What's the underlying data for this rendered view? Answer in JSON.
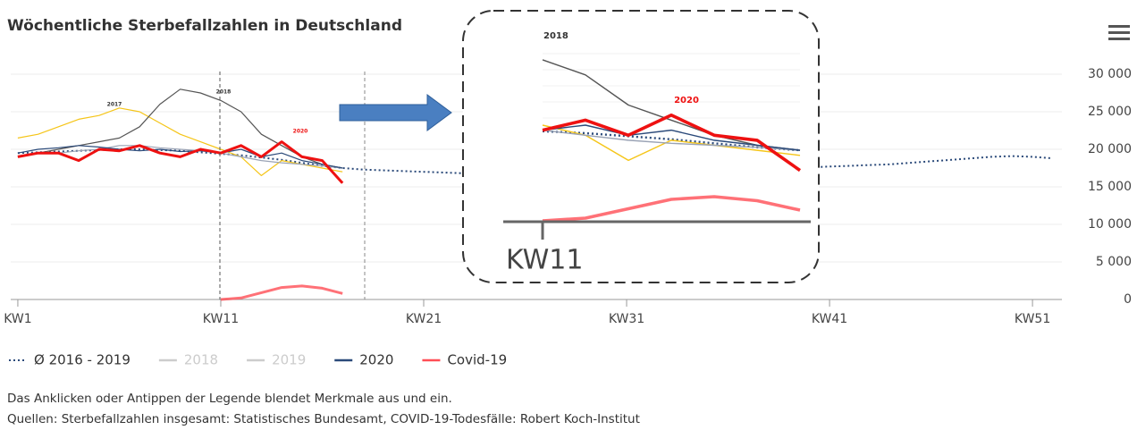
{
  "chart_data": {
    "type": "line",
    "title": "Wöchentliche Sterbefallzahlen in Deutschland",
    "x": [
      1,
      2,
      3,
      4,
      5,
      6,
      7,
      8,
      9,
      10,
      11,
      12,
      13,
      14,
      15,
      16,
      17,
      18,
      19,
      20,
      21,
      22,
      23,
      24,
      25,
      26,
      27,
      28,
      29,
      30,
      31,
      32,
      33,
      34,
      35,
      36,
      37,
      38,
      39,
      40,
      41,
      42,
      43,
      44,
      45,
      46,
      47,
      48,
      49,
      50,
      51,
      52
    ],
    "xlim": [
      0.65,
      52.45
    ],
    "xticks": [
      {
        "value": 1,
        "label": "KW1"
      },
      {
        "value": 11,
        "label": "KW11"
      },
      {
        "value": 21,
        "label": "KW21"
      },
      {
        "value": 31,
        "label": "KW31"
      },
      {
        "value": 41,
        "label": "KW41"
      },
      {
        "value": 51,
        "label": "KW51"
      }
    ],
    "ylim": [
      0,
      30000
    ],
    "yticks": [
      0,
      {
        "value": 5000,
        "label": "5 000"
      },
      {
        "value": 10000,
        "label": "10 000"
      },
      {
        "value": 15000,
        "label": "15 000"
      },
      {
        "value": 20000,
        "label": "20 000"
      },
      {
        "value": 25000,
        "label": "25 000"
      },
      {
        "value": 30000,
        "label": "30 000"
      }
    ],
    "grid": true,
    "series": [
      {
        "name": "Ø 2016 - 2019",
        "color": "#2b4a7a",
        "dash": true,
        "legend": true,
        "hidden": false,
        "values": [
          19500,
          19600,
          19700,
          19800,
          19900,
          20000,
          20000,
          19900,
          19800,
          19600,
          19400,
          19200,
          18900,
          18600,
          18200,
          17800,
          17500,
          17300,
          17200,
          17100,
          17000,
          16900,
          16800,
          16600,
          16500,
          16700,
          16800,
          16900,
          17000,
          17100,
          17100,
          17200,
          17300,
          17300,
          17400,
          17400,
          17500,
          17500,
          17600,
          17600,
          17700,
          17800,
          17900,
          18000,
          18200,
          18400,
          18600,
          18800,
          19000,
          19100,
          19000,
          18800
        ]
      },
      {
        "name": "2017",
        "color": "#f5c518",
        "dash": false,
        "legend": false,
        "hidden": false,
        "values": [
          21500,
          22000,
          23000,
          24000,
          24500,
          25500,
          25000,
          23500,
          22000,
          21000,
          20000,
          19000,
          16500,
          18500,
          18000,
          17500,
          17000,
          null,
          null,
          null,
          null,
          null,
          null,
          null,
          null,
          null,
          null,
          null,
          null,
          null,
          null,
          null,
          null,
          null,
          null,
          null,
          null,
          null,
          null,
          null,
          null,
          null,
          null,
          null,
          null,
          null,
          null,
          null,
          null,
          null,
          null,
          null
        ]
      },
      {
        "name": "2018",
        "color": "#555555",
        "dash": false,
        "legend": true,
        "hidden": true,
        "values": [
          19000,
          19500,
          20000,
          20500,
          21000,
          21500,
          23000,
          26000,
          28000,
          27500,
          26500,
          25000,
          22000,
          20500,
          19000,
          18000,
          17500,
          null,
          null,
          null,
          null,
          null,
          null,
          null,
          null,
          null,
          null,
          null,
          null,
          null,
          null,
          null,
          null,
          null,
          null,
          null,
          null,
          null,
          null,
          null,
          null,
          null,
          null,
          null,
          null,
          null,
          null,
          null,
          null,
          null,
          null,
          null
        ]
      },
      {
        "name": "2019",
        "color": "#9aa3b5",
        "dash": false,
        "legend": true,
        "hidden": true,
        "values": [
          19000,
          19500,
          19500,
          19800,
          20000,
          20500,
          20500,
          20200,
          20000,
          19800,
          19500,
          19000,
          18500,
          18200,
          18000,
          17800,
          17500,
          null,
          null,
          null,
          null,
          null,
          null,
          null,
          null,
          null,
          null,
          null,
          null,
          null,
          null,
          null,
          null,
          null,
          null,
          null,
          null,
          null,
          null,
          null,
          null,
          null,
          null,
          null,
          null,
          null,
          null,
          null,
          null,
          null,
          null,
          null
        ]
      },
      {
        "name": "2020",
        "color": "#2b4a7a",
        "dash": false,
        "legend": true,
        "hidden": false,
        "values": [
          19500,
          20000,
          20200,
          20500,
          20300,
          20000,
          19800,
          20000,
          19700,
          19800,
          19500,
          20000,
          19000,
          19500,
          18500,
          18000,
          17500,
          null,
          null,
          null,
          null,
          null,
          null,
          null,
          null,
          null,
          null,
          null,
          null,
          null,
          null,
          null,
          null,
          null,
          null,
          null,
          null,
          null,
          null,
          null,
          null,
          null,
          null,
          null,
          null,
          null,
          null,
          null,
          null,
          null,
          null,
          null
        ]
      },
      {
        "name": "2020",
        "color": "#ee1111",
        "dash": false,
        "legend": false,
        "hidden": false,
        "values": [
          19000,
          19500,
          19500,
          18500,
          20000,
          19800,
          20500,
          19500,
          19000,
          20000,
          19500,
          20500,
          19000,
          21000,
          19000,
          18500,
          15500,
          null,
          null,
          null,
          null,
          null,
          null,
          null,
          null,
          null,
          null,
          null,
          null,
          null,
          null,
          null,
          null,
          null,
          null,
          null,
          null,
          null,
          null,
          null,
          null,
          null,
          null,
          null,
          null,
          null,
          null,
          null,
          null,
          null,
          null,
          null
        ]
      },
      {
        "name": "Covid-19",
        "color": "#ff4d55",
        "dash": false,
        "legend": true,
        "hidden": false,
        "values": [
          null,
          null,
          null,
          null,
          null,
          null,
          null,
          null,
          null,
          null,
          0,
          200,
          900,
          1600,
          1800,
          1500,
          800,
          null,
          null,
          null,
          null,
          null,
          null,
          null,
          null,
          null,
          null,
          null,
          null,
          null,
          null,
          null,
          null,
          null,
          null,
          null,
          null,
          null,
          null,
          null,
          null,
          null,
          null,
          null,
          null,
          null,
          null,
          null,
          null,
          null,
          null,
          null
        ]
      }
    ],
    "annotations": [
      "2017",
      "2018",
      "2020"
    ],
    "inset_labels": [
      "2018",
      "2020",
      "KW11"
    ],
    "notes": [
      "Das Anklicken oder Antippen der Legende blendet Merkmale aus und ein.",
      "Quellen: Sterbefallzahlen insgesamt: Statistisches Bundesamt, COVID-19-Todesfälle: Robert Koch-Institut"
    ]
  }
}
